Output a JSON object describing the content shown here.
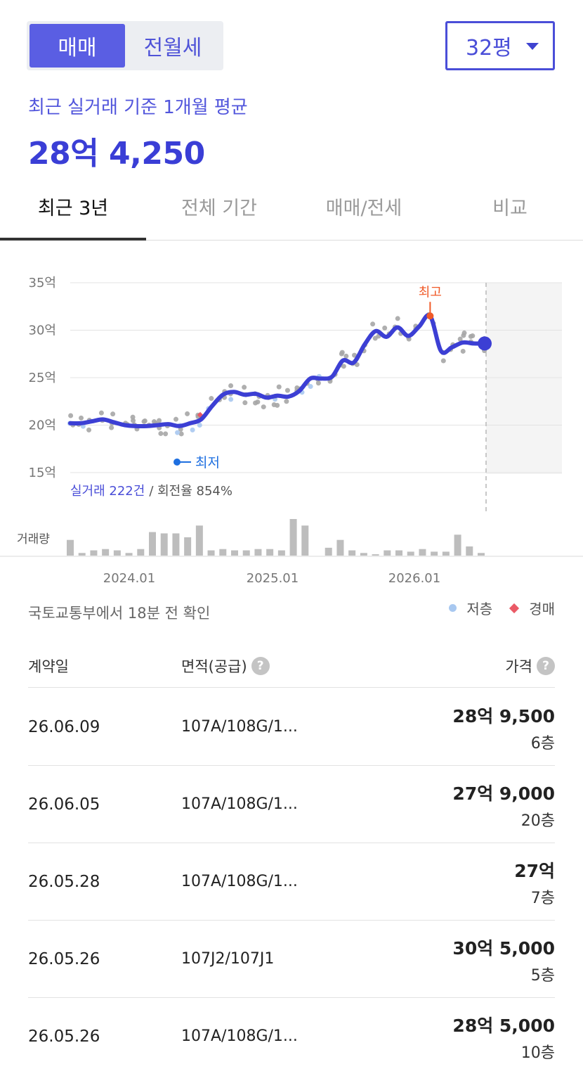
{
  "toggle": {
    "sale": "매매",
    "rent": "전월세"
  },
  "size": {
    "value": "32평",
    "icon": "caret-down-icon"
  },
  "summary": {
    "subtitle": "최근 실거래 기준 1개월 평균",
    "price": "28억 4,250"
  },
  "tabs": [
    {
      "label": "최근 3년",
      "active": true
    },
    {
      "label": "전체 기간",
      "active": false
    },
    {
      "label": "매매/전세",
      "active": false
    },
    {
      "label": "비교",
      "active": false
    }
  ],
  "chart_data": {
    "type": "line",
    "y_ticks": [
      "35억",
      "30억",
      "25억",
      "20억",
      "15억"
    ],
    "ylim": [
      15,
      35
    ],
    "x_ticks": [
      "2024.01",
      "2025.01",
      "2026.01"
    ],
    "high_label": "최고",
    "low_label": "최저",
    "stats_count": "실거래 222건",
    "stats_turnover": "/ 회전율 854%",
    "volume_label": "거래량",
    "series": [
      {
        "values": [
          20.2,
          20.2,
          20.4,
          20.6,
          20.3,
          20.0,
          19.9,
          19.9,
          20.0,
          20.1,
          19.9,
          20.2,
          20.6,
          22.0,
          23.2,
          23.5,
          23.2,
          23.3,
          22.9,
          23.1,
          23.0,
          23.6,
          24.9,
          24.9,
          25.1,
          26.8,
          26.6,
          28.5,
          29.9,
          29.3,
          30.3,
          29.4,
          30.4,
          31.5,
          27.8,
          28.2,
          28.7,
          28.6,
          28.6
        ]
      }
    ],
    "volume": [
      12,
      2,
      4,
      5,
      4,
      2,
      5,
      18,
      17,
      17,
      14,
      23,
      4,
      5,
      4,
      4,
      5,
      5,
      4,
      28,
      23,
      0,
      6,
      12,
      4,
      2,
      1,
      4,
      4,
      3,
      5,
      3,
      3,
      16,
      7,
      2
    ],
    "colors": {
      "line": "#3c3fd4",
      "high": "#f05a28",
      "low": "#1e6fe0",
      "scatter": "#a6a6a6",
      "scatter_low_floor": "#a8c8f0",
      "auction": "#ea5a66"
    }
  },
  "meta": {
    "source": "국토교통부에서 18분 전 확인"
  },
  "legend": {
    "low_floor": "저층",
    "auction": "경매"
  },
  "table": {
    "headers": {
      "date": "계약일",
      "area": "면적(공급)",
      "price": "가격"
    },
    "rows": [
      {
        "date": "26.06.09",
        "area": "107A/108G/1...",
        "price": "28억 9,500",
        "floor": "6층"
      },
      {
        "date": "26.06.05",
        "area": "107A/108G/1...",
        "price": "27억 9,000",
        "floor": "20층"
      },
      {
        "date": "26.05.28",
        "area": "107A/108G/1...",
        "price": "27억",
        "floor": "7층"
      },
      {
        "date": "26.05.26",
        "area": "107J2/107J1",
        "price": "30억 5,000",
        "floor": "5층"
      },
      {
        "date": "26.05.26",
        "area": "107A/108G/1...",
        "price": "28억 5,000",
        "floor": "10층"
      }
    ]
  }
}
